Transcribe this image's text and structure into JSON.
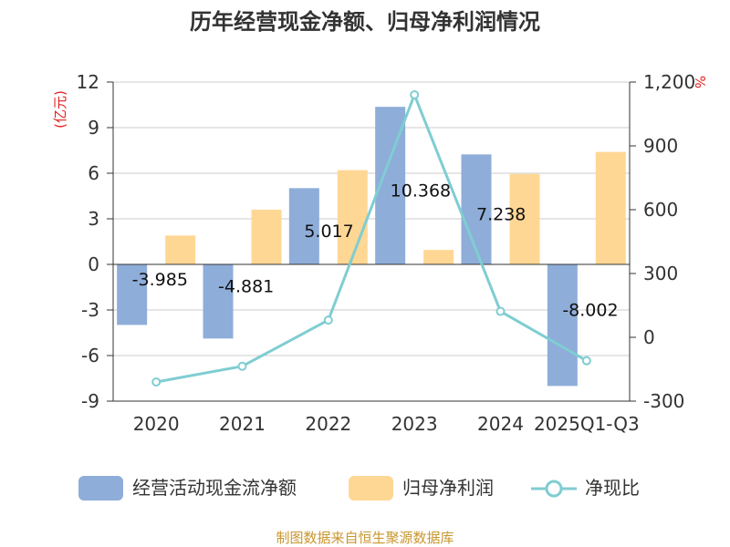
{
  "chart_data": {
    "type": "bar",
    "title": "历年经营现金净额、归母净利润情况",
    "categories": [
      "2020",
      "2021",
      "2022",
      "2023",
      "2024",
      "2025Q1-Q3"
    ],
    "series": [
      {
        "name": "经营活动现金流净额",
        "type": "bar",
        "axis": "left",
        "values": [
          -3.985,
          -4.881,
          5.017,
          10.368,
          7.238,
          -8.002
        ],
        "labels": [
          "-3.985",
          "-4.881",
          "5.017",
          "10.368",
          "7.238",
          "-8.002"
        ],
        "color": "#8eadd9"
      },
      {
        "name": "归母净利润",
        "type": "bar",
        "axis": "left",
        "values": [
          1.9,
          3.6,
          6.2,
          0.95,
          5.95,
          7.4
        ],
        "color": "#ffd794"
      },
      {
        "name": "净现比",
        "type": "line",
        "axis": "right",
        "values": [
          -210,
          -136,
          81,
          1140,
          122,
          -110
        ],
        "color": "#7fcdd2"
      }
    ],
    "y_left": {
      "unit": "(亿元)",
      "min": -9,
      "max": 12,
      "ticks": [
        12,
        9,
        6,
        3,
        0,
        -3,
        -6,
        -9
      ],
      "tick_labels": [
        "12",
        "9",
        "6",
        "3",
        "0",
        "-3",
        "-6",
        "-9"
      ]
    },
    "y_right": {
      "unit": "%",
      "min": -300,
      "max": 1200,
      "ticks": [
        1200,
        900,
        600,
        300,
        0,
        -300
      ],
      "tick_labels": [
        "1,200",
        "900",
        "600",
        "300",
        "0",
        "-300"
      ]
    },
    "legend_position": "bottom",
    "grid": true
  },
  "footer": {
    "source": "制图数据来自恒生聚源数据库"
  }
}
